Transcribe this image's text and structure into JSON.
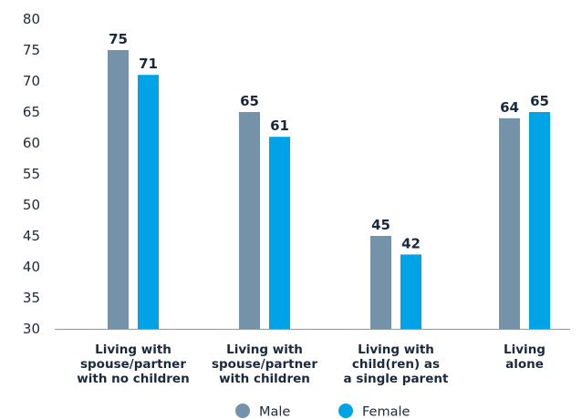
{
  "chart_data": {
    "type": "bar",
    "categories": [
      [
        "Living with",
        "spouse/partner",
        "with no children"
      ],
      [
        "Living with",
        "spouse/partner",
        "with children"
      ],
      [
        "Living with",
        "child(ren) as",
        "a single parent"
      ],
      [
        "Living",
        "alone"
      ]
    ],
    "series": [
      {
        "name": "Male",
        "values": [
          75,
          65,
          45,
          64
        ],
        "color": "#7492a8"
      },
      {
        "name": "Female",
        "values": [
          71,
          61,
          42,
          65
        ],
        "color": "#00a3e6"
      }
    ],
    "ylim": [
      30,
      80
    ],
    "yticks": [
      30,
      35,
      40,
      45,
      50,
      55,
      60,
      65,
      70,
      75,
      80
    ],
    "grid": false,
    "legend": "bottom-center",
    "title": "",
    "xlabel": "",
    "ylabel": ""
  }
}
